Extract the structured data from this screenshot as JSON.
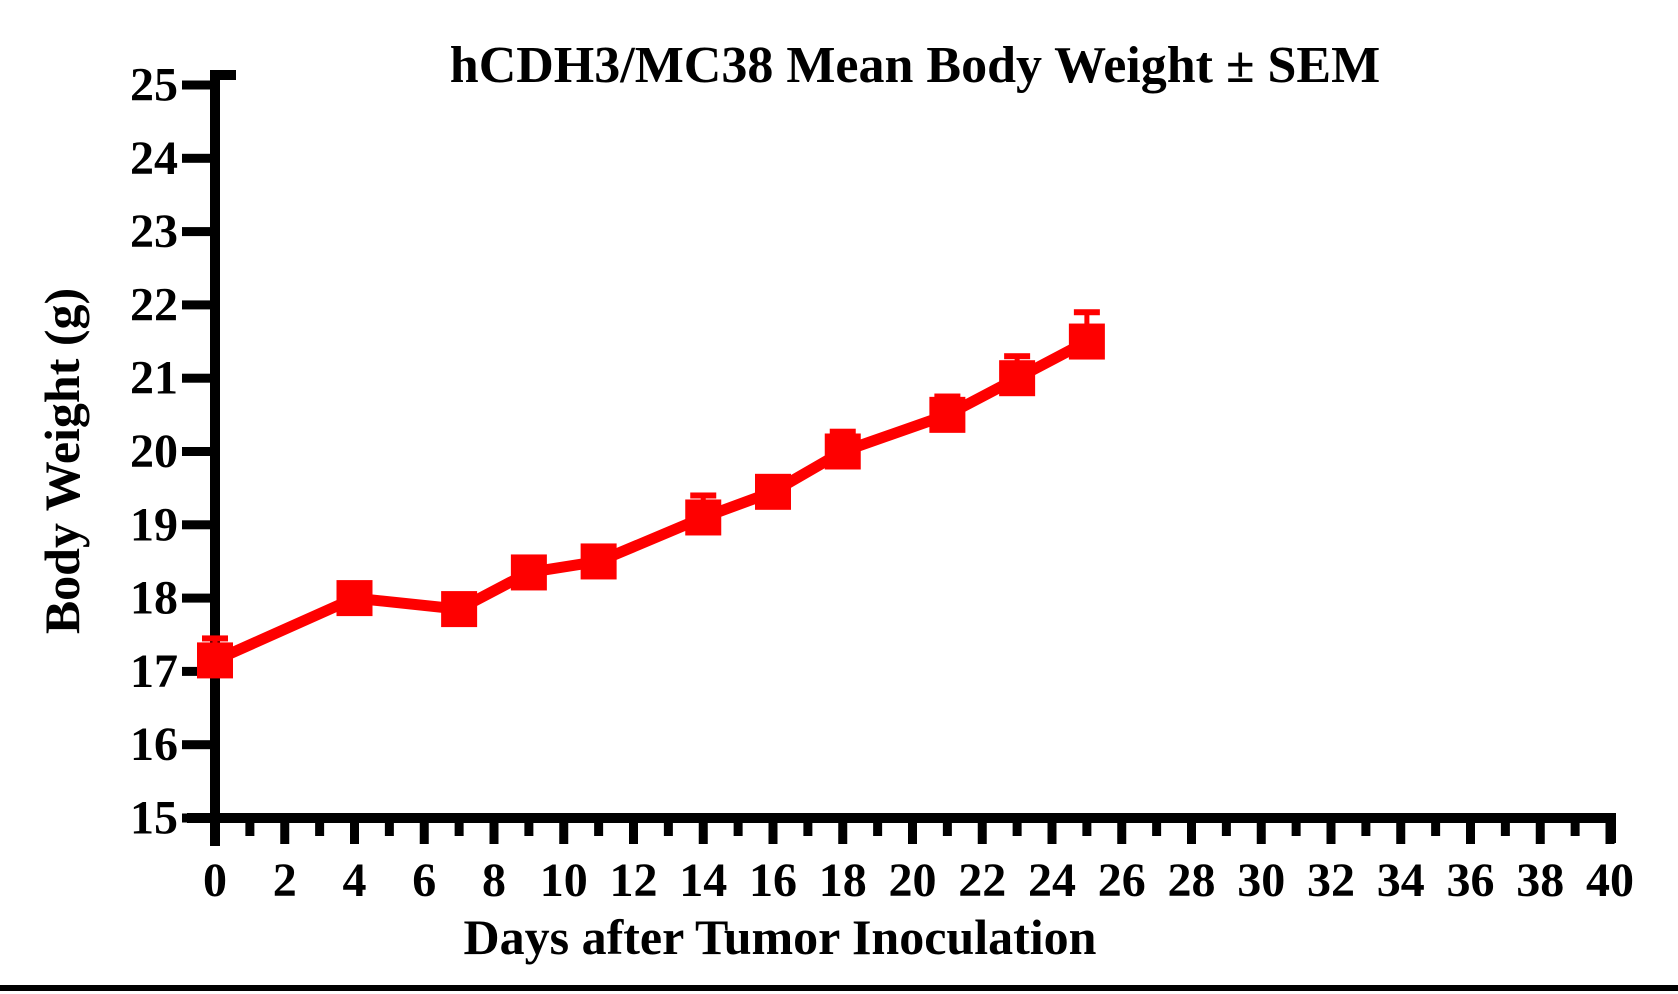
{
  "figure": {
    "title": "hCDH3/MC38 Mean Body Weight ± SEM",
    "x_axis_label": "Days after Tumor Inoculation",
    "y_axis_label": "Body Weight (g)"
  },
  "chart_data": {
    "type": "line",
    "title": "hCDH3/MC38 Mean Body Weight ± SEM",
    "xlabel": "Days after Tumor Inoculation",
    "ylabel": "Body Weight (g)",
    "xlim": [
      0,
      40
    ],
    "ylim": [
      15,
      25
    ],
    "x_labeled_tick_step": 2,
    "x_minor_tick_step": 1,
    "y_tick_step": 1,
    "x_tick_labels": [
      "0",
      "2",
      "4",
      "6",
      "8",
      "10",
      "12",
      "14",
      "16",
      "18",
      "20",
      "22",
      "24",
      "26",
      "28",
      "30",
      "32",
      "34",
      "36",
      "38",
      "40"
    ],
    "y_tick_labels": [
      "15",
      "16",
      "17",
      "18",
      "19",
      "20",
      "21",
      "22",
      "23",
      "24",
      "25"
    ],
    "grid": false,
    "legend_position": "none",
    "axis_color": "#000000",
    "series": [
      {
        "name": "hCDH3/MC38 mean body weight",
        "color": "#FE0000",
        "marker": "filled-square",
        "error_bar_type": "SEM, upper",
        "x": [
          0,
          4,
          7,
          9,
          11,
          14,
          16,
          18,
          21,
          23,
          25
        ],
        "y": [
          17.15,
          18.0,
          17.85,
          18.35,
          18.5,
          19.1,
          19.45,
          20.0,
          20.5,
          21.0,
          21.5
        ],
        "sem_upper": [
          0.3,
          0.15,
          0.15,
          0.15,
          0.15,
          0.3,
          0.18,
          0.27,
          0.25,
          0.3,
          0.4
        ]
      }
    ]
  },
  "footer_rule": {
    "color": "#000000"
  }
}
